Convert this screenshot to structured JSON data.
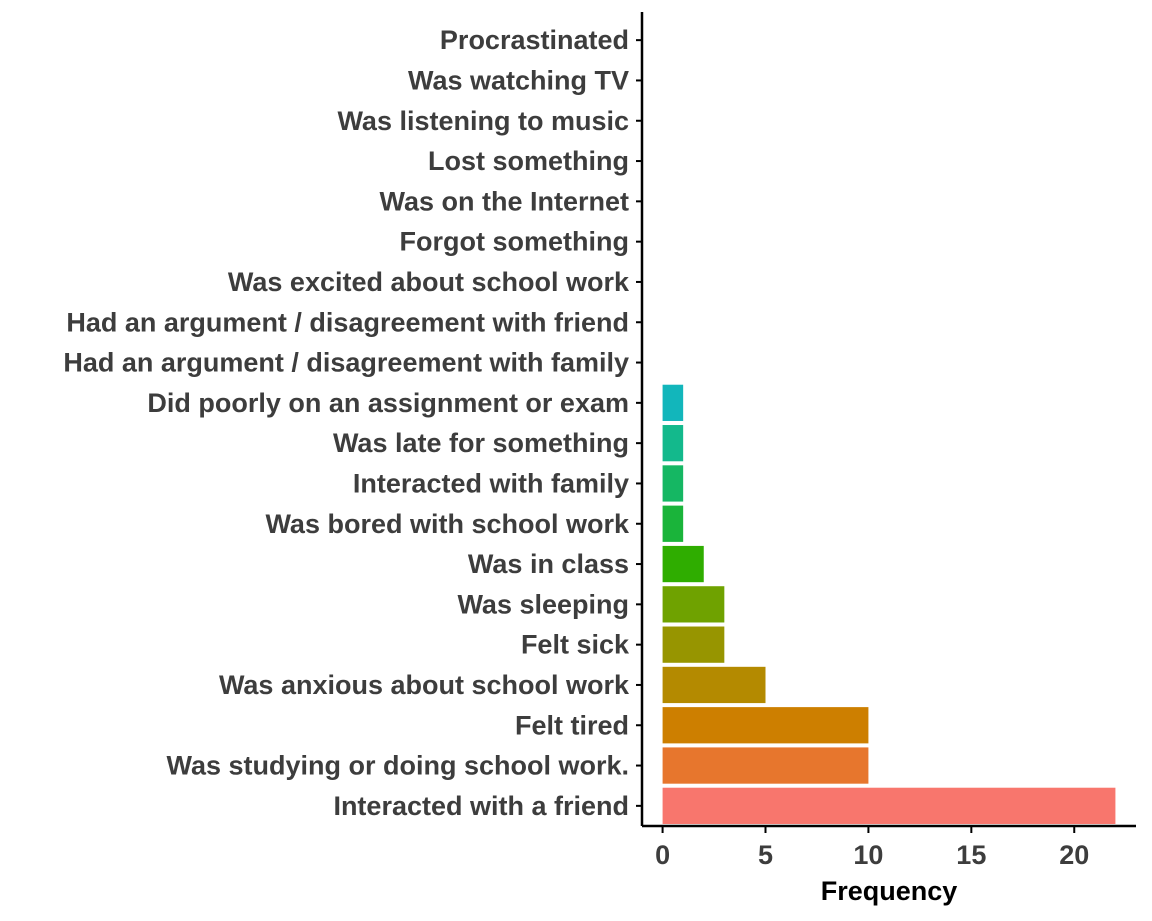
{
  "chart_data": {
    "type": "bar",
    "orientation": "horizontal",
    "title": "",
    "xlabel": "Frequency",
    "ylabel": "",
    "xlim": [
      -1,
      23
    ],
    "xticks": [
      0,
      5,
      10,
      15,
      20
    ],
    "grid": false,
    "legend": "none",
    "categories": [
      "Interacted with a friend",
      "Was studying or doing school work.",
      "Felt tired",
      "Was anxious about school work",
      "Felt sick",
      "Was sleeping",
      "Was in class",
      "Was bored with school work",
      "Interacted with family",
      "Was late for something",
      "Did poorly on an assignment or exam",
      "Had an argument / disagreement with family",
      "Had an argument / disagreement with friend",
      "Was excited about school work",
      "Forgot something",
      "Was on the Internet",
      "Lost something",
      "Was listening to music",
      "Was watching TV",
      "Procrastinated"
    ],
    "values": [
      22,
      10,
      10,
      5,
      3,
      3,
      2,
      1,
      1,
      1,
      1,
      0,
      0,
      0,
      0,
      0,
      0,
      0,
      0,
      0
    ],
    "colors": [
      "#F8766D",
      "#E7762D",
      "#CD7F00",
      "#B48A00",
      "#979500",
      "#6FA200",
      "#2FAD00",
      "#1AB43A",
      "#15B763",
      "#13B98C",
      "#12B6BB",
      "#12AFE0",
      "#44A3F8",
      "#8D93FF",
      "#B983FF",
      "#D777FA",
      "#EA6BE6",
      "#F566CC",
      "#FA66AE",
      "#F86E8C"
    ]
  }
}
